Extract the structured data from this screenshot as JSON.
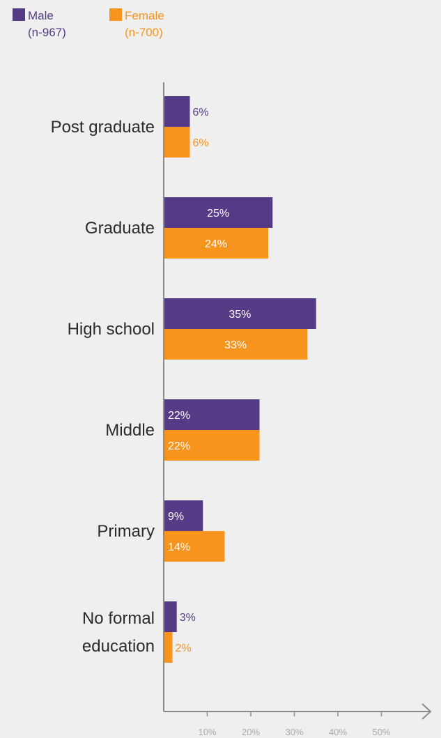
{
  "chart_data": {
    "type": "bar",
    "orientation": "horizontal",
    "categories": [
      "Post graduate",
      "Graduate",
      "High school",
      "Middle",
      "Primary",
      "No formal education"
    ],
    "category_lines": [
      [
        "Post graduate"
      ],
      [
        "Graduate"
      ],
      [
        "High school"
      ],
      [
        "Middle"
      ],
      [
        "Primary"
      ],
      [
        "No formal",
        "education"
      ]
    ],
    "series": [
      {
        "name": "Male",
        "n": "(n-967)",
        "color": "#553b85",
        "values": [
          6,
          25,
          35,
          22,
          9,
          3
        ],
        "labels": [
          "6%",
          "25%",
          "35%",
          "22%",
          "9%",
          "3%"
        ]
      },
      {
        "name": "Female",
        "n": "(n-700)",
        "color": "#f7941d",
        "values": [
          6,
          24,
          33,
          22,
          14,
          2
        ],
        "labels": [
          "6%",
          "24%",
          "33%",
          "22%",
          "14%",
          "2%"
        ]
      }
    ],
    "x_ticks": [
      10,
      20,
      30,
      40,
      50
    ],
    "x_tick_labels": [
      "10%",
      "20%",
      "30%",
      "40%",
      "50%"
    ],
    "xlim": [
      0,
      60
    ],
    "legend_position": "top-left",
    "grid": false,
    "title": "",
    "xlabel": "",
    "ylabel": ""
  }
}
